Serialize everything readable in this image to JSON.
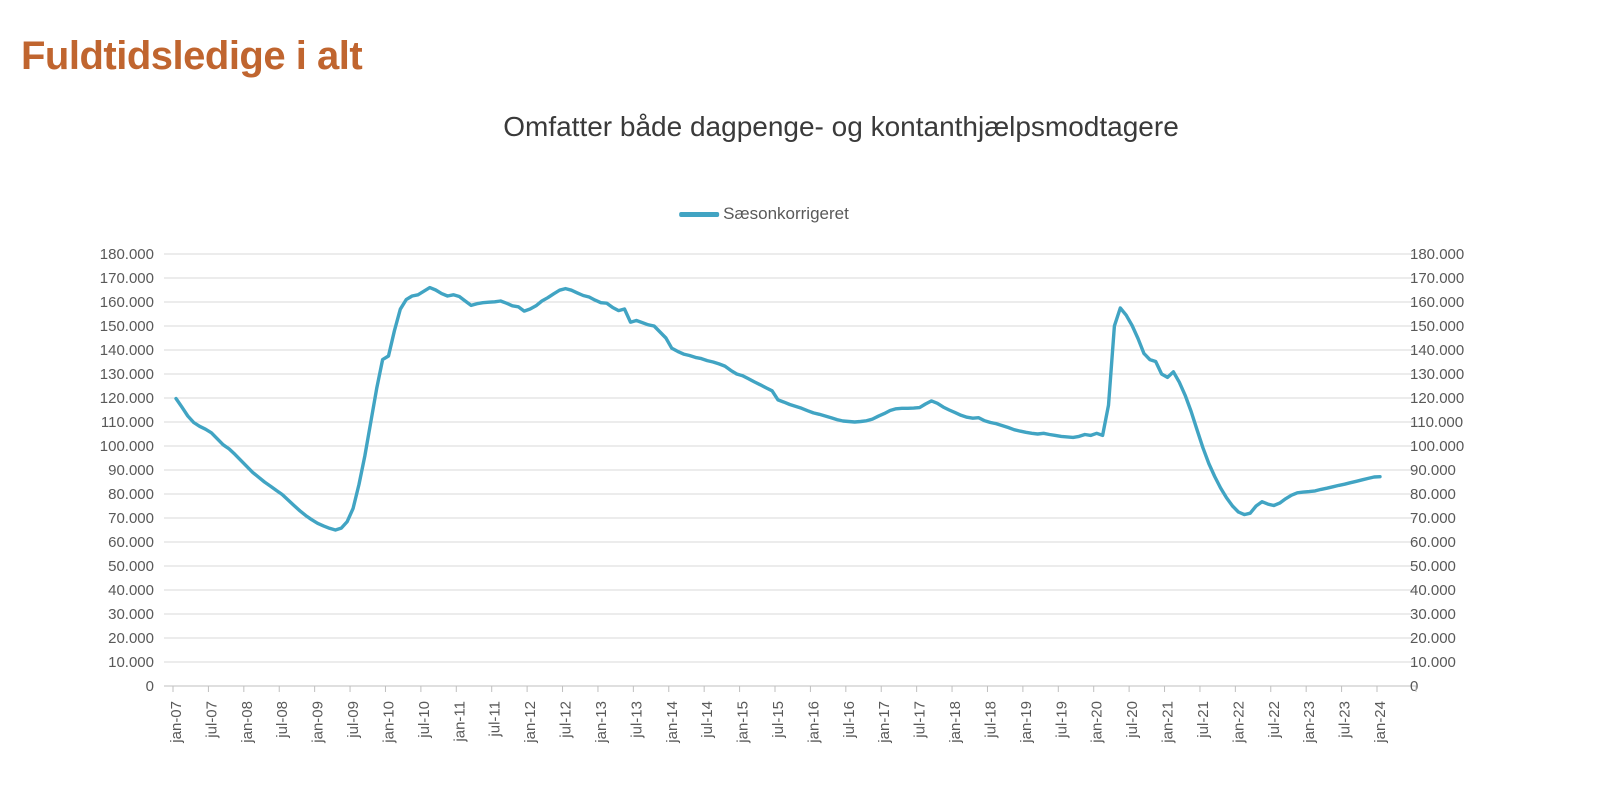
{
  "page": {
    "title": "Fuldtidsledige i alt"
  },
  "colors": {
    "page_title": "#C0652F",
    "chart_title_text": "#3A3A3A",
    "series_line": "#41A4C3",
    "gridline": "#D9D9D9",
    "axis_line": "#BFBFBF",
    "axis_text": "#595959"
  },
  "chart_data": {
    "type": "line",
    "title": "Omfatter både dagpenge- og kontanthjælpsmodtagere",
    "legend_position": "top",
    "grid": true,
    "dual_y_axis": true,
    "x_axis": {
      "frequency": "monthly",
      "start": "jan-07",
      "end": "jan-24",
      "tick_every": 6,
      "tick_labels": [
        "jan-07",
        "jul-07",
        "jan-08",
        "jul-08",
        "jan-09",
        "jul-09",
        "jan-10",
        "jul-10",
        "jan-11",
        "jul-11",
        "jan-12",
        "jul-12",
        "jan-13",
        "jul-13",
        "jan-14",
        "jul-14",
        "jan-15",
        "jul-15",
        "jan-16",
        "jul-16",
        "jan-17",
        "jul-17",
        "jan-18",
        "jul-18",
        "jan-19",
        "jul-19",
        "jan-20",
        "jul-20",
        "jan-21",
        "jul-21",
        "jan-22",
        "jul-22",
        "jan-23",
        "jul-23",
        "jan-24"
      ]
    },
    "y_axis": {
      "min": 0,
      "max": 180000,
      "step": 10000,
      "tick_labels": [
        "0",
        "10.000",
        "20.000",
        "30.000",
        "40.000",
        "50.000",
        "60.000",
        "70.000",
        "80.000",
        "90.000",
        "100.000",
        "110.000",
        "120.000",
        "130.000",
        "140.000",
        "150.000",
        "160.000",
        "170.000",
        "180.000"
      ]
    },
    "series": [
      {
        "name": "Sæsonkorrigeret",
        "color": "#41A4C3",
        "values": [
          119800,
          116200,
          112500,
          109800,
          108200,
          107000,
          105500,
          103000,
          100500,
          98800,
          96500,
          94000,
          91500,
          89000,
          87000,
          85000,
          83300,
          81500,
          79800,
          77500,
          75200,
          73000,
          71000,
          69300,
          67800,
          66700,
          65700,
          65000,
          65800,
          68500,
          74000,
          84000,
          96000,
          110000,
          124000,
          136000,
          137500,
          148000,
          157000,
          161000,
          162500,
          163000,
          164500,
          166000,
          165000,
          163500,
          162500,
          163000,
          162300,
          160400,
          158600,
          159300,
          159700,
          159900,
          160100,
          160400,
          159500,
          158400,
          158000,
          156200,
          157100,
          158400,
          160400,
          161800,
          163400,
          164900,
          165600,
          164900,
          163800,
          162700,
          162100,
          160800,
          159700,
          159500,
          157700,
          156400,
          157100,
          151600,
          152300,
          151400,
          150500,
          150000,
          147500,
          145000,
          140700,
          139400,
          138300,
          137700,
          136900,
          136400,
          135600,
          135000,
          134200,
          133300,
          131500,
          130000,
          129300,
          128000,
          126700,
          125500,
          124200,
          123000,
          119200,
          118300,
          117300,
          116500,
          115700,
          114700,
          113800,
          113200,
          112500,
          111800,
          111000,
          110400,
          110200,
          110000,
          110200,
          110500,
          111200,
          112400,
          113500,
          114800,
          115500,
          115700,
          115700,
          115800,
          116000,
          117500,
          118800,
          117800,
          116200,
          115000,
          113900,
          112800,
          112000,
          111600,
          111800,
          110500,
          109800,
          109300,
          108500,
          107700,
          106800,
          106200,
          105700,
          105300,
          105000,
          105300,
          104800,
          104400,
          104000,
          103800,
          103600,
          104000,
          104800,
          104400,
          105300,
          104400,
          117000,
          150000,
          157500,
          154500,
          150200,
          144800,
          138600,
          136000,
          135200,
          130000,
          128600,
          130900,
          126600,
          121100,
          114400,
          106800,
          99300,
          92700,
          87300,
          82500,
          78400,
          75000,
          72500,
          71400,
          72000,
          75000,
          76800,
          75800,
          75200,
          76200,
          78000,
          79500,
          80500,
          80800,
          81000,
          81300,
          81900,
          82400,
          83000,
          83600,
          84100,
          84700,
          85300,
          85900,
          86500,
          87100,
          87200
        ]
      }
    ]
  }
}
